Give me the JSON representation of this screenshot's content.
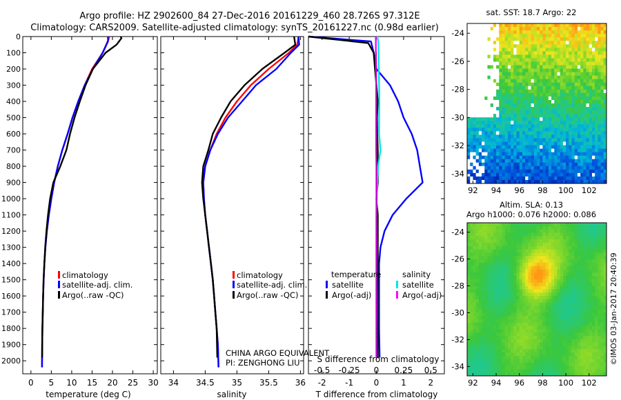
{
  "title_line1": "Argo profile: HZ 2902600_84 27-Dec-2016 20161229_460 28.726S 97.312E",
  "title_line2": "Climatology: CARS2009. Satellite-adjusted climatology: synTS_20161227.nc (0.98d earlier)",
  "map_top_title": "sat. SST: 18.7 Argo: 22",
  "map_bottom_title1": "Altim. SLA: 0.13",
  "map_bottom_title2": "Argo h1000: 0.076 h2000: 0.086",
  "credit": "©IMOS 03-Jan-2017 20:40:39",
  "annotation_line1": "CHINA ARGO EQUIVALENT",
  "annotation_line2": "PI: ZENGHONG LIU",
  "colors": {
    "climatology": "#ff0000",
    "satellite": "#0000ff",
    "argo": "#000000",
    "satellite_s": "#00e5e5",
    "argo_s": "#ff00ff"
  },
  "chart_data": [
    {
      "type": "line",
      "panel": "temperature",
      "xlabel": "temperature (deg C)",
      "ylabel": "",
      "xlim": [
        -2,
        31
      ],
      "ylim": [
        2080,
        0
      ],
      "y_reversed": true,
      "xticks": [
        0,
        5,
        10,
        15,
        20,
        25,
        30
      ],
      "yticks": [
        0,
        100,
        200,
        300,
        400,
        500,
        600,
        700,
        800,
        900,
        1000,
        1100,
        1200,
        1300,
        1400,
        1500,
        1600,
        1700,
        1800,
        1900,
        2000
      ],
      "legend": {
        "position": "lower-center",
        "entries": [
          "climatology",
          "satellite-adj. clim.",
          "Argo(..raw -QC)"
        ]
      },
      "series": [
        {
          "name": "climatology",
          "color": "#ff0000",
          "x": [
            19.2,
            19.0,
            17.6,
            15.0,
            13.2,
            11.6,
            10.2,
            9.0,
            7.7,
            6.6,
            5.7,
            5.0,
            4.4,
            3.9,
            3.55,
            3.3,
            3.12,
            3.0,
            2.9,
            2.82,
            2.75,
            2.72
          ],
          "y": [
            0,
            20,
            100,
            200,
            300,
            400,
            500,
            600,
            700,
            800,
            900,
            1000,
            1100,
            1200,
            1300,
            1400,
            1500,
            1600,
            1700,
            1800,
            1900,
            2040
          ]
        },
        {
          "name": "satellite-adj. clim.",
          "color": "#0000ff",
          "x": [
            18.9,
            18.9,
            17.6,
            15.2,
            13.2,
            11.6,
            10.2,
            9.0,
            7.7,
            6.6,
            5.7,
            5.0,
            4.4,
            3.9,
            3.55,
            3.3,
            3.12,
            3.0,
            2.9,
            2.82,
            2.75,
            2.72
          ],
          "y": [
            0,
            30,
            100,
            200,
            300,
            400,
            500,
            600,
            700,
            800,
            900,
            1000,
            1100,
            1200,
            1300,
            1400,
            1500,
            1600,
            1700,
            1800,
            1900,
            2040
          ]
        },
        {
          "name": "Argo(..raw -QC)",
          "color": "#000000",
          "x": [
            22.0,
            22.2,
            21.0,
            18.3,
            15.2,
            13.4,
            12.0,
            10.7,
            9.6,
            8.7,
            7.2,
            5.5,
            4.7,
            4.2,
            3.8,
            3.5,
            3.3,
            3.1,
            3.0,
            2.9,
            2.8,
            2.75
          ],
          "y": [
            0,
            10,
            50,
            100,
            200,
            300,
            400,
            500,
            600,
            700,
            800,
            900,
            1000,
            1100,
            1200,
            1300,
            1400,
            1500,
            1600,
            1700,
            1800,
            1980
          ]
        }
      ]
    },
    {
      "type": "line",
      "panel": "salinity",
      "xlabel": "salinity",
      "ylabel": "",
      "xlim": [
        33.8,
        36.05
      ],
      "ylim": [
        2080,
        0
      ],
      "y_reversed": true,
      "xticks": [
        34,
        34.5,
        35,
        35.5,
        36
      ],
      "xticklabels": [
        "34",
        "34.5",
        "35",
        "35.5",
        "36"
      ],
      "legend": {
        "position": "lower-right",
        "entries": [
          "climatology",
          "satellite-adj. clim.",
          "Argo(..raw -QC)"
        ]
      },
      "series": [
        {
          "name": "climatology",
          "color": "#ff0000",
          "x": [
            35.97,
            35.95,
            35.82,
            35.5,
            35.22,
            35.0,
            34.82,
            34.68,
            34.58,
            34.5,
            34.47,
            34.48,
            34.5,
            34.53,
            34.56,
            34.59,
            34.62,
            34.64,
            34.66,
            34.68,
            34.7,
            34.71
          ],
          "y": [
            0,
            50,
            100,
            200,
            300,
            400,
            500,
            600,
            700,
            800,
            900,
            1000,
            1100,
            1200,
            1300,
            1400,
            1500,
            1600,
            1700,
            1800,
            1900,
            2040
          ]
        },
        {
          "name": "satellite-adj. clim.",
          "color": "#0000ff",
          "x": [
            35.97,
            35.98,
            35.85,
            35.62,
            35.3,
            35.08,
            34.86,
            34.7,
            34.58,
            34.5,
            34.47,
            34.48,
            34.5,
            34.53,
            34.56,
            34.59,
            34.62,
            34.64,
            34.66,
            34.68,
            34.7,
            34.71
          ],
          "y": [
            0,
            50,
            100,
            200,
            300,
            400,
            500,
            600,
            700,
            800,
            900,
            1000,
            1100,
            1200,
            1300,
            1400,
            1500,
            1600,
            1700,
            1800,
            1900,
            2040
          ]
        },
        {
          "name": "Argo(..raw -QC)",
          "color": "#000000",
          "x": [
            35.9,
            35.92,
            35.75,
            35.4,
            35.12,
            34.9,
            34.75,
            34.62,
            34.55,
            34.47,
            34.45,
            34.47,
            34.5,
            34.53,
            34.56,
            34.59,
            34.62,
            34.64,
            34.66,
            34.68,
            34.69
          ],
          "y": [
            0,
            50,
            100,
            200,
            300,
            400,
            500,
            600,
            700,
            800,
            900,
            1000,
            1100,
            1200,
            1300,
            1400,
            1500,
            1600,
            1700,
            1800,
            1980
          ]
        }
      ]
    },
    {
      "type": "line",
      "panel": "difference",
      "xlabel": "T difference from climatology",
      "xlabel_top": "S difference from climatology",
      "xlim": [
        -2.5,
        2.5
      ],
      "ylim": [
        2080,
        0
      ],
      "y_reversed": true,
      "xticks": [
        -2,
        -1,
        0,
        1,
        2
      ],
      "xticks_top": [
        -0.5,
        -0.25,
        0,
        0.25,
        0.5
      ],
      "legend_left": {
        "title": "temperature",
        "entries": [
          "satellite",
          "Argo(-adj)"
        ]
      },
      "legend_right": {
        "title": "salinity",
        "entries": [
          "satellite",
          "Argo(-adj)"
        ]
      },
      "series": [
        {
          "name": "temperature satellite",
          "color": "#0000ff",
          "x": [
            -2.5,
            -0.2,
            -0.1,
            0,
            0.5,
            0.8,
            1.0,
            1.3,
            1.5,
            1.6,
            1.7,
            1.1,
            0.6,
            0.3,
            0.15,
            0.1,
            0.1,
            0.1,
            0.1,
            0.1,
            0.12
          ],
          "y": [
            0,
            30,
            100,
            200,
            300,
            400,
            500,
            600,
            700,
            800,
            900,
            1000,
            1100,
            1200,
            1300,
            1400,
            1500,
            1600,
            1700,
            1800,
            1980
          ]
        },
        {
          "name": "temperature Argo(-adj)",
          "color": "#000000",
          "x": [
            -2.5,
            -0.3,
            -0.1,
            -0.05,
            0,
            0.05,
            0.02,
            0.03,
            0.05,
            0.05,
            0.05,
            0.0,
            0.05,
            0.05,
            0.05,
            0.05,
            0.05,
            0.05,
            0.05,
            0.05,
            0.05
          ],
          "y": [
            0,
            40,
            100,
            200,
            300,
            400,
            500,
            600,
            700,
            800,
            900,
            1000,
            1100,
            1200,
            1300,
            1400,
            1500,
            1600,
            1700,
            1800,
            1980
          ]
        },
        {
          "name": "salinity satellite",
          "color": "#00e5e5",
          "x": [
            0.03,
            0.07,
            0.08,
            0.09,
            0.1,
            0.11,
            0.1,
            0.1,
            0.15,
            0.06,
            0.03,
            0.02,
            0.0,
            0.0,
            0.0,
            0.0,
            0.0,
            0.0,
            0.0,
            0.0,
            0.0
          ],
          "y": [
            0,
            30,
            100,
            200,
            300,
            400,
            500,
            600,
            700,
            800,
            900,
            1000,
            1100,
            1200,
            1300,
            1400,
            1500,
            1600,
            1700,
            1800,
            1980
          ]
        },
        {
          "name": "salinity Argo(-adj)",
          "color": "#ff00ff",
          "x": [
            -0.02,
            -0.02,
            -0.02,
            -0.01,
            -0.01,
            -0.01,
            -0.01,
            -0.01,
            -0.01,
            0.0,
            0.0,
            0.0,
            0.0,
            0.0,
            0.0,
            0.0,
            0.0,
            0.0,
            0.0,
            0.0,
            0.0
          ],
          "y": [
            0,
            30,
            100,
            200,
            300,
            400,
            500,
            600,
            700,
            800,
            900,
            1000,
            1100,
            1200,
            1300,
            1400,
            1500,
            1600,
            1700,
            1800,
            1980
          ]
        }
      ]
    },
    {
      "type": "heatmap",
      "panel": "sat. SST",
      "xlim": [
        91.5,
        103.5
      ],
      "ylim": [
        -34.7,
        -23.3
      ],
      "xticks": [
        92,
        94,
        96,
        98,
        100,
        102
      ],
      "yticks": [
        -24,
        -26,
        -28,
        -30,
        -32,
        -34
      ],
      "argo_position": [
        97.312,
        -28.726
      ],
      "land_mask": "white patches"
    },
    {
      "type": "heatmap",
      "panel": "Altim. SLA",
      "xlim": [
        91.5,
        103.5
      ],
      "ylim": [
        -34.7,
        -23.3
      ],
      "xticks": [
        92,
        94,
        96,
        98,
        100,
        102
      ],
      "yticks": [
        -24,
        -26,
        -28,
        -30,
        -32,
        -34
      ],
      "argo_position": [
        97.312,
        -28.726
      ]
    }
  ]
}
